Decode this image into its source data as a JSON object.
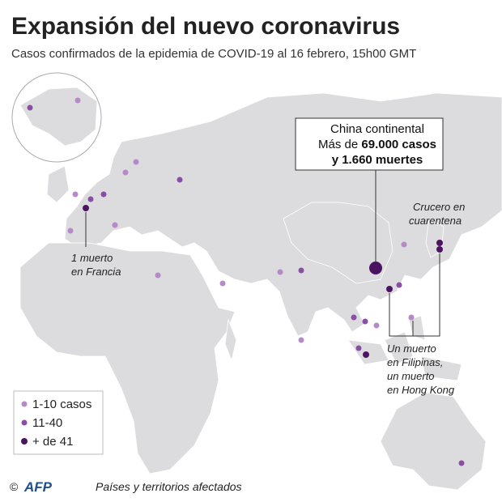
{
  "header": {
    "title": "Expansión del nuevo coronavirus",
    "subtitle": "Casos confirmados de la epidemia de COVID-19 al 16 febrero, 15h00 GMT"
  },
  "callout": {
    "title": "China continental",
    "prefix": "Más de ",
    "cases": "69.000 casos",
    "deaths": "y 1.660 muertes"
  },
  "annotations": {
    "cruise": [
      "Crucero en",
      "cuarentena"
    ],
    "france": [
      "1 muerto",
      "en Francia"
    ],
    "asia": [
      "Un muerto",
      "en Filipinas,",
      "un muerto",
      "en Hong Kong"
    ]
  },
  "legend": [
    "1-10 casos",
    "11-40",
    "+ de 41"
  ],
  "footer": {
    "copyright": "©",
    "agency": "AFP",
    "caption": "Países y territorios afectados"
  }
}
